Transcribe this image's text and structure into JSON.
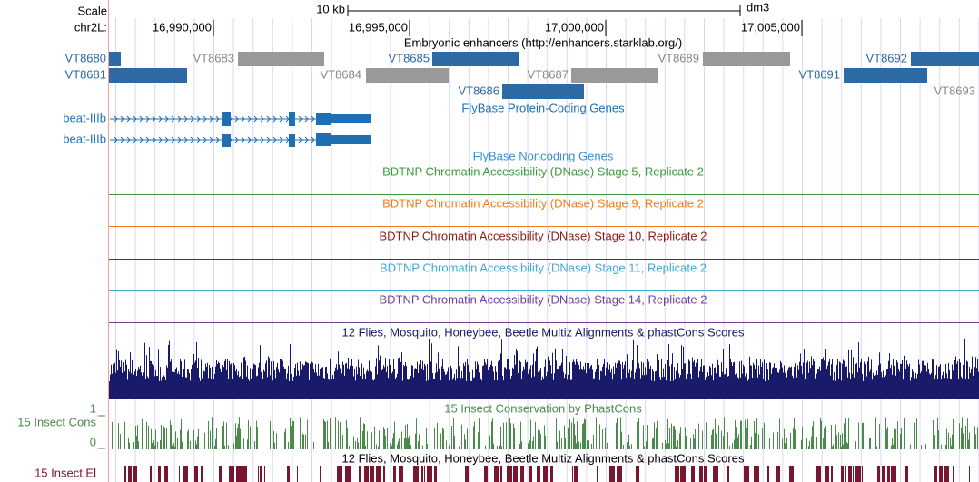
{
  "header": {
    "scale_label": "Scale",
    "chrom_label": "chr2L:",
    "scale_bar": "10 kb",
    "assembly": "dm3",
    "positions": [
      "16,990,000",
      "16,995,000",
      "17,000,000",
      "17,005,000"
    ]
  },
  "enhancers": {
    "title": "Embryonic enhancers (http://enhancers.starklab.org/)",
    "items": [
      {
        "label": "VT8680",
        "color": "#2c69a5"
      },
      {
        "label": "VT8681",
        "color": "#2c69a5"
      },
      {
        "label": "VT8683",
        "color": "#999999"
      },
      {
        "label": "VT8684",
        "color": "#999999"
      },
      {
        "label": "VT8685",
        "color": "#2c69a5"
      },
      {
        "label": "VT8686",
        "color": "#2c69a5"
      },
      {
        "label": "VT8687",
        "color": "#999999"
      },
      {
        "label": "VT8689",
        "color": "#999999"
      },
      {
        "label": "VT8691",
        "color": "#2c69a5"
      },
      {
        "label": "VT8692",
        "color": "#2c69a5"
      },
      {
        "label": "VT8693",
        "color": "#999999"
      }
    ]
  },
  "genes": {
    "title": "FlyBase Protein-Coding Genes",
    "color": "#1f6fb3",
    "items": [
      "beat-IIIb",
      "beat-IIIb"
    ]
  },
  "noncoding": {
    "title": "FlyBase Noncoding Genes",
    "color": "#3a8fcf"
  },
  "dnase": [
    {
      "title": "BDTNP Chromatin Accessibility (DNase) Stage 5, Replicate 2",
      "color": "#3a9a3a"
    },
    {
      "title": "BDTNP Chromatin Accessibility (DNase) Stage 9, Replicate 2",
      "color": "#f07c1c"
    },
    {
      "title": "BDTNP Chromatin Accessibility (DNase) Stage 10, Replicate 2",
      "color": "#8b1c1c"
    },
    {
      "title": "BDTNP Chromatin Accessibility (DNase) Stage 11, Replicate 2",
      "color": "#44a8d6"
    },
    {
      "title": "BDTNP Chromatin Accessibility (DNase) Stage 14, Replicate 2",
      "color": "#6f3fa0"
    }
  ],
  "multiz": {
    "title": "12 Flies, Mosquito, Honeybee, Beetle Multiz Alignments & phastCons Scores",
    "color": "#1a1a6a"
  },
  "phastcons": {
    "title": "15 Insect Conservation by PhastCons",
    "label": "15 Insect Cons",
    "max": "1",
    "min": "0",
    "color": "#4a8a4a"
  },
  "elements": {
    "title": "12 Flies, Mosquito, Honeybee, Beetle Multiz Alignments & phastCons Scores",
    "label": "15 Insect El",
    "color": "#7a1530"
  }
}
